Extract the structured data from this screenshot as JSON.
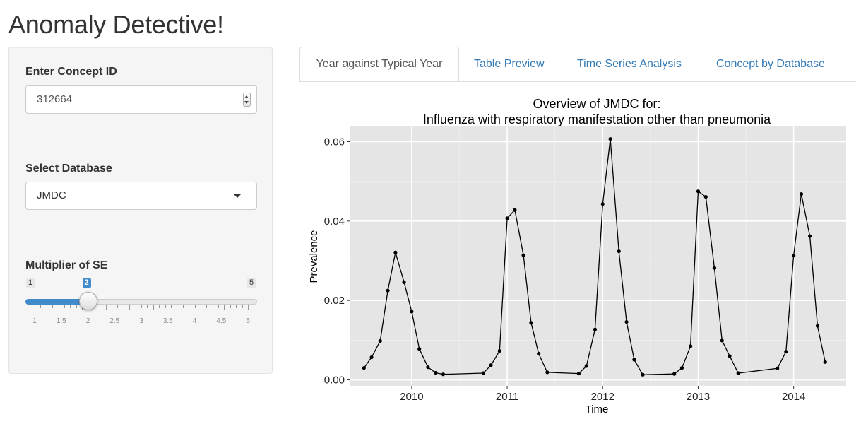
{
  "app": {
    "title": "Anomaly Detective!"
  },
  "sidebar": {
    "concept_label": "Enter Concept ID",
    "concept_value": "312664",
    "database_label": "Select Database",
    "database_value": "JMDC",
    "multiplier_label": "Multiplier of SE",
    "slider": {
      "min": "1",
      "max": "5",
      "current": "2",
      "current_value": 2,
      "tick_labels": [
        "1",
        "1.5",
        "2",
        "2.5",
        "3",
        "3.5",
        "4",
        "4.5",
        "5"
      ]
    }
  },
  "tabs": [
    {
      "label": "Year against Typical Year",
      "active": true
    },
    {
      "label": "Table Preview",
      "active": false
    },
    {
      "label": "Time Series Analysis",
      "active": false
    },
    {
      "label": "Concept by Database",
      "active": false
    }
  ],
  "chart_data": {
    "type": "line",
    "title": "Overview of JMDC for:",
    "subtitle": "Influenza with respiratory manifestation other than pneumonia",
    "xlabel": "Time",
    "ylabel": "Prevalence",
    "xlim": [
      2009.35,
      2014.55
    ],
    "ylim": [
      -0.0015,
      0.064
    ],
    "xticks": [
      2010,
      2011,
      2012,
      2013,
      2014
    ],
    "xtick_labels": [
      "2010",
      "2011",
      "2012",
      "2013",
      "2014"
    ],
    "yticks": [
      0,
      0.02,
      0.04,
      0.06
    ],
    "ytick_labels": [
      "0.00",
      "0.02",
      "0.04",
      "0.06"
    ],
    "grid": true,
    "background": "#e5e5e5",
    "line_color": "#000000",
    "series": [
      {
        "x": [
          2009.5,
          2009.58,
          2009.67,
          2009.75,
          2009.83,
          2009.92,
          2010.0,
          2010.08,
          2010.17,
          2010.25,
          2010.33,
          2010.75,
          2010.83,
          2010.92,
          2011.0,
          2011.08,
          2011.17,
          2011.25,
          2011.33,
          2011.42,
          2011.75,
          2011.83,
          2011.92,
          2012.0,
          2012.08,
          2012.17,
          2012.25,
          2012.33,
          2012.42,
          2012.75,
          2012.83,
          2012.92,
          2013.0,
          2013.08,
          2013.17,
          2013.25,
          2013.33,
          2013.42,
          2013.83,
          2013.92,
          2014.0,
          2014.08,
          2014.17,
          2014.25,
          2014.33
        ],
        "y": [
          0.003,
          0.0057,
          0.0098,
          0.0225,
          0.0321,
          0.0246,
          0.0172,
          0.0078,
          0.0032,
          0.0018,
          0.0014,
          0.0017,
          0.0037,
          0.0073,
          0.0407,
          0.0428,
          0.0314,
          0.0144,
          0.0066,
          0.0019,
          0.0016,
          0.0035,
          0.0127,
          0.0443,
          0.0607,
          0.0324,
          0.0146,
          0.0051,
          0.0013,
          0.0015,
          0.003,
          0.0085,
          0.0475,
          0.0461,
          0.0282,
          0.0099,
          0.006,
          0.0017,
          0.0029,
          0.0071,
          0.0313,
          0.0468,
          0.0362,
          0.0136,
          0.0045
        ]
      }
    ]
  }
}
